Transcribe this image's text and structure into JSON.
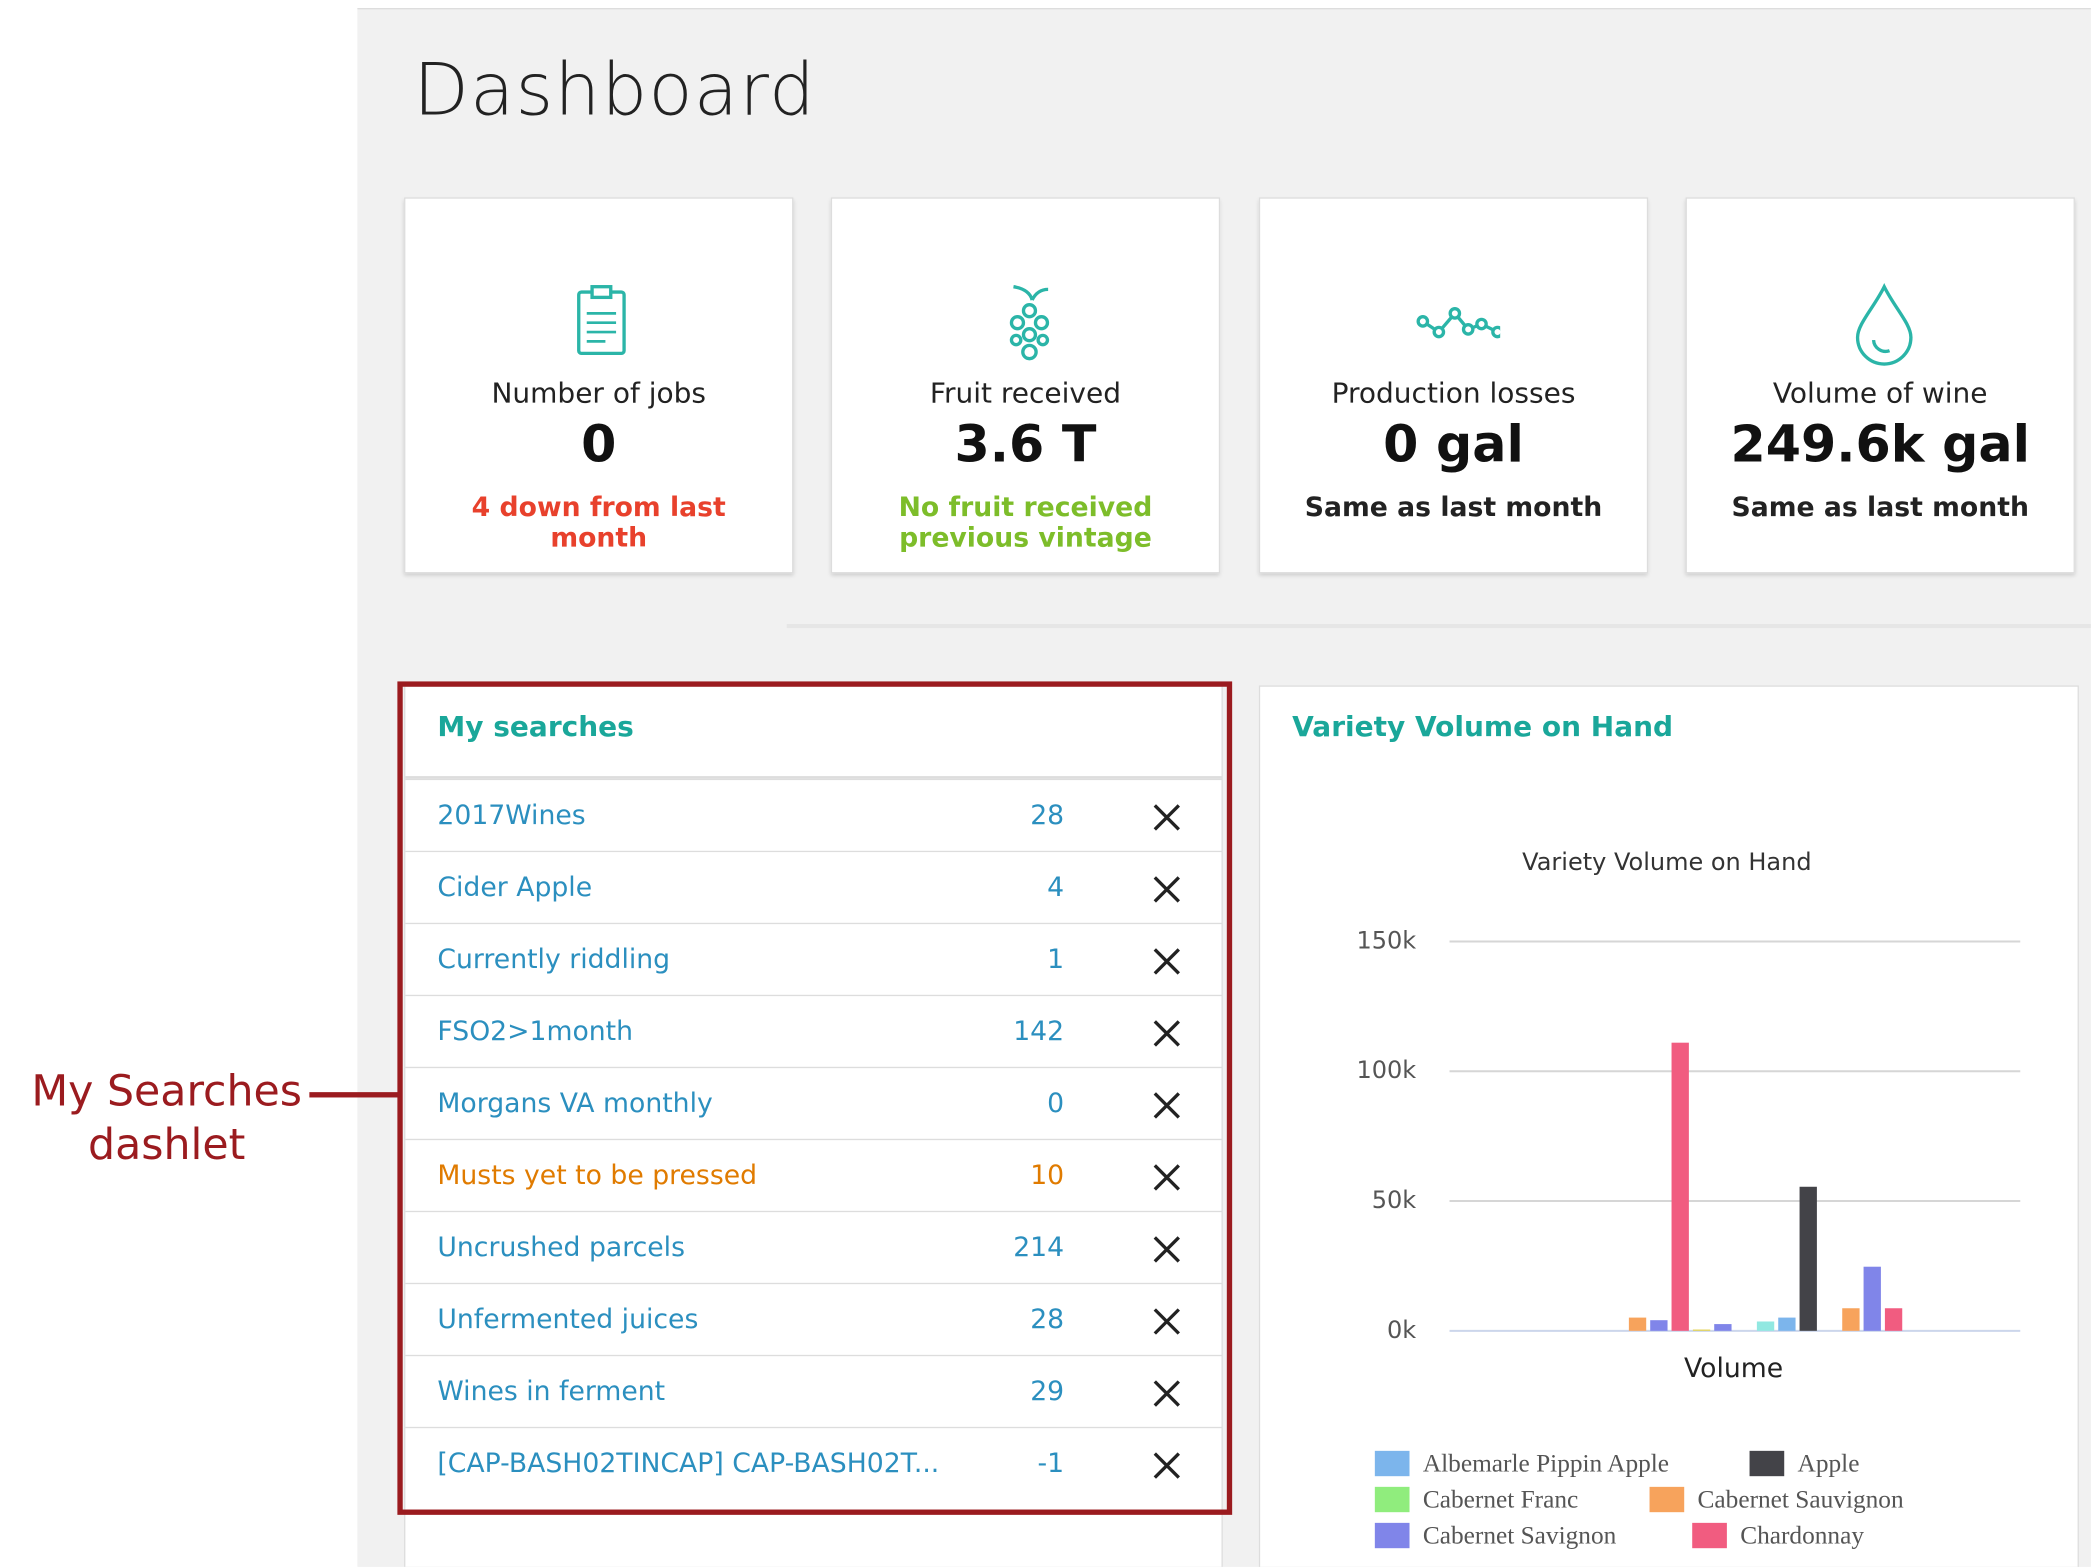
{
  "header": {
    "title": "Dashboard"
  },
  "cards": [
    {
      "label": "Number of jobs",
      "value": "0",
      "note": "4 down from last month",
      "note_color": "#e8412c"
    },
    {
      "label": "Fruit received",
      "value": "3.6 T",
      "note": "No fruit received previous vintage",
      "note_color": "#7dbd2a"
    },
    {
      "label": "Production losses",
      "value": "0 gal",
      "note": "Same as last month",
      "note_color": "#222222"
    },
    {
      "label": "Volume of wine",
      "value": "249.6k gal",
      "note": "Same as last month",
      "note_color": "#222222"
    }
  ],
  "my_searches": {
    "title": "My searches",
    "rows": [
      {
        "name": "2017Wines",
        "count": 28
      },
      {
        "name": "Cider Apple",
        "count": 4
      },
      {
        "name": "Currently riddling",
        "count": 1
      },
      {
        "name": "FSO2>1month",
        "count": 142
      },
      {
        "name": "Morgans VA monthly",
        "count": 0
      },
      {
        "name": "Musts yet to be pressed",
        "count": 10,
        "color": "#e07b00"
      },
      {
        "name": "Uncrushed parcels",
        "count": 214
      },
      {
        "name": "Unfermented juices",
        "count": 28
      },
      {
        "name": "Wines in ferment",
        "count": 29
      },
      {
        "name": "[CAP-BASH02TINCAP] CAP-BASH02T...",
        "count": -1
      }
    ]
  },
  "annotation": {
    "lines": [
      "My Searches",
      "dashlet"
    ]
  },
  "chart_panel": {
    "title": "Variety Volume on Hand"
  },
  "chart_data": {
    "type": "bar",
    "title": "Variety Volume on Hand",
    "categories": [
      "Volume"
    ],
    "ylim": [
      0,
      150000
    ],
    "yticks": [
      {
        "value": 0,
        "label": "0k"
      },
      {
        "value": 50000,
        "label": "50k"
      },
      {
        "value": 100000,
        "label": "100k"
      },
      {
        "value": 150000,
        "label": "150k"
      }
    ],
    "grid": true,
    "series": [
      {
        "name": "Albemarle Pippin Apple",
        "color": "#7cb5ec",
        "values": [
          0
        ]
      },
      {
        "name": "Apple",
        "color": "#434348",
        "values": [
          0
        ]
      },
      {
        "name": "Cabernet Franc",
        "color": "#90ed7d",
        "values": [
          0
        ]
      },
      {
        "name": "Cabernet Sauvignon",
        "color": "#f7a35c",
        "values": [
          5100
        ]
      },
      {
        "name": "Cabernet Savignon",
        "color": "#8085e9",
        "values": [
          4100
        ]
      },
      {
        "name": "Chardonnay",
        "color": "#f15c80",
        "values": [
          111000
        ]
      },
      {
        "name": null,
        "color": "#e4d354",
        "values": [
          500
        ]
      },
      {
        "name": null,
        "color": "#8085e9",
        "values": [
          2600
        ]
      },
      {
        "name": null,
        "color": "#f45b5b",
        "values": [
          0
        ]
      },
      {
        "name": null,
        "color": "#91e8e1",
        "values": [
          3600
        ]
      },
      {
        "name": null,
        "color": "#7cb5ec",
        "values": [
          5100
        ]
      },
      {
        "name": null,
        "color": "#434348",
        "values": [
          55500
        ]
      },
      {
        "name": null,
        "color": "#90ed7d",
        "values": [
          0
        ]
      },
      {
        "name": null,
        "color": "#f7a35c",
        "values": [
          8700
        ]
      },
      {
        "name": null,
        "color": "#8085e9",
        "values": [
          24700
        ]
      },
      {
        "name": null,
        "color": "#f15c80",
        "values": [
          8700
        ]
      }
    ]
  }
}
